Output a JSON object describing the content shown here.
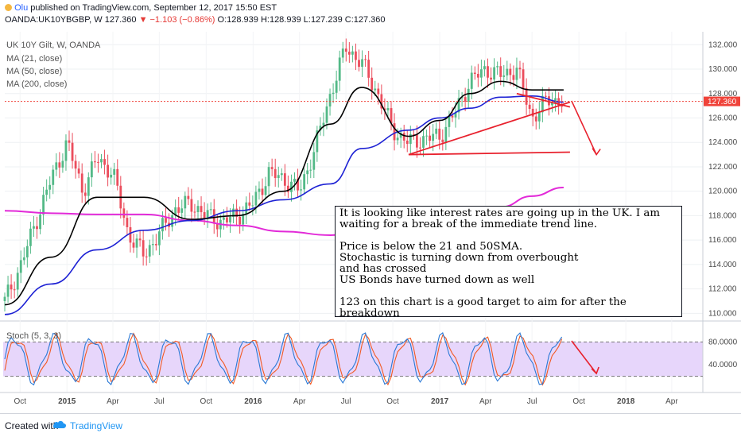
{
  "header": {
    "author": "Olu",
    "published": "published on TradingView.com, September 12, 2017 15:50 EST",
    "symbol": "OANDA:UK10YBGBP, W",
    "last": "127.360",
    "change": "▼ −1.103 (−0.86%)",
    "ohlc": "O:128.939 H:128.939 L:127.239 C:127.360"
  },
  "legend": {
    "title": "UK 10Y Gilt, W, OANDA",
    "ma21": "MA (21, close)",
    "ma50": "MA (50, close)",
    "ma200": "MA (200, close)",
    "stoch": "Stoch (5, 3, 3)"
  },
  "annotation": {
    "line1": "It is looking like interest rates are going up in the UK. I am waiting for a break of the immediate trend line.",
    "line2": "Price is below the 21 and 50SMA.",
    "line3": "Stochastic is turning down from overbought",
    "line4": "and has crossed",
    "line5": "US Bonds have turned down as well",
    "line6": "123 on this chart is a good target to aim for after the breakdown"
  },
  "footer": {
    "created": "Created with",
    "brand": "TradingView"
  },
  "colors": {
    "up": "#53b987",
    "down": "#eb4d5c",
    "ma21": "#000000",
    "ma50": "#1e22d4",
    "ma200": "#e22ad8",
    "drawing": "#e8212d",
    "stochK": "#2a79d6",
    "stochD": "#f25a24",
    "stochBand": "#e7d6fb",
    "lastPrice": "#f0433a"
  },
  "chart_data": {
    "type": "candlestick",
    "price_axis": {
      "min": 109.5,
      "max": 132.8,
      "ticks": [
        "110.000",
        "112.000",
        "114.000",
        "116.000",
        "118.000",
        "120.000",
        "122.000",
        "124.000",
        "126.000",
        "128.000",
        "130.000",
        "132.000"
      ]
    },
    "last_price_label": "127.360",
    "time_axis": {
      "labels": [
        "Oct",
        "2015",
        "Apr",
        "Jul",
        "Oct",
        "2016",
        "Apr",
        "Jul",
        "Oct",
        "2017",
        "Apr",
        "Jul",
        "Oct",
        "2018",
        "Apr"
      ]
    },
    "price_path": {
      "dates": [
        "2014-09",
        "2014-10",
        "2014-11",
        "2014-12",
        "2015-01",
        "2015-02",
        "2015-03",
        "2015-04",
        "2015-05",
        "2015-06",
        "2015-07",
        "2015-08",
        "2015-09",
        "2015-10",
        "2015-11",
        "2015-12",
        "2016-01",
        "2016-02",
        "2016-03",
        "2016-04",
        "2016-05",
        "2016-06",
        "2016-07",
        "2016-08",
        "2016-09",
        "2016-10",
        "2016-11",
        "2016-12",
        "2017-01",
        "2017-02",
        "2017-03",
        "2017-04",
        "2017-05",
        "2017-06",
        "2017-07",
        "2017-08",
        "2017-09"
      ],
      "closes": [
        111.0,
        113.8,
        117.5,
        121.0,
        124.0,
        120.0,
        122.7,
        121.5,
        116.5,
        114.8,
        116.5,
        118.5,
        119.0,
        118.0,
        117.5,
        118.0,
        119.0,
        121.5,
        121.0,
        120.0,
        123.5,
        128.0,
        131.8,
        130.5,
        128.0,
        125.0,
        124.0,
        124.3,
        124.5,
        126.5,
        129.0,
        130.0,
        129.5,
        130.0,
        126.0,
        127.5,
        127.36
      ]
    },
    "moving_averages": [
      {
        "name": "MA (21, close)",
        "dates": [
          "2014-09",
          "2014-12",
          "2015-03",
          "2015-06",
          "2015-09",
          "2015-12",
          "2016-03",
          "2016-06",
          "2016-08",
          "2016-11",
          "2017-01",
          "2017-03",
          "2017-05",
          "2017-07",
          "2017-09"
        ],
        "values": [
          110.7,
          114.6,
          119.5,
          119.5,
          117.7,
          118.0,
          120.0,
          125.5,
          128.5,
          124.5,
          125.8,
          128.0,
          129.0,
          128.3,
          128.3
        ]
      },
      {
        "name": "MA (50, close)",
        "dates": [
          "2014-09",
          "2014-12",
          "2015-03",
          "2015-06",
          "2015-09",
          "2015-12",
          "2016-03",
          "2016-06",
          "2016-08",
          "2016-11",
          "2017-01",
          "2017-03",
          "2017-05",
          "2017-07",
          "2017-09"
        ],
        "values": [
          109.9,
          112.4,
          115.2,
          116.8,
          117.6,
          118.4,
          119.3,
          120.6,
          123.5,
          125.0,
          126.0,
          126.8,
          127.7,
          127.8,
          127.3
        ]
      },
      {
        "name": "MA (200, close)",
        "dates": [
          "2014-09",
          "2014-12",
          "2015-03",
          "2015-06",
          "2015-09",
          "2015-12",
          "2016-03",
          "2016-06",
          "2016-08",
          "2016-11",
          "2017-01",
          "2017-03",
          "2017-05",
          "2017-07",
          "2017-09"
        ],
        "values": [
          118.4,
          118.2,
          118.1,
          118.1,
          117.6,
          117.2,
          116.7,
          116.4,
          116.6,
          117.0,
          117.4,
          118.0,
          118.7,
          119.6,
          120.3
        ]
      }
    ],
    "trend_lines": [
      {
        "from": [
          "2016-11",
          123.0
        ],
        "to": [
          "2017-09",
          127.3
        ]
      },
      {
        "from": [
          "2016-11",
          123.0
        ],
        "to": [
          "2017-09",
          123.2
        ]
      },
      {
        "from": [
          "2017-06",
          128.0
        ],
        "to": [
          "2017-09",
          126.9
        ]
      },
      {
        "arrow_from": [
          "2017-09",
          127.4
        ],
        "arrow_to": [
          "2017-10",
          123.0
        ]
      }
    ],
    "stochastic": {
      "name": "Stoch (5, 3, 3)",
      "range": [
        0,
        100
      ],
      "levels": [
        20,
        80
      ],
      "ticks": [
        "80.0000",
        "40.0000"
      ],
      "arrow": {
        "from": [
          "2017-09",
          82
        ],
        "to": [
          "2017-10",
          25
        ]
      }
    }
  }
}
